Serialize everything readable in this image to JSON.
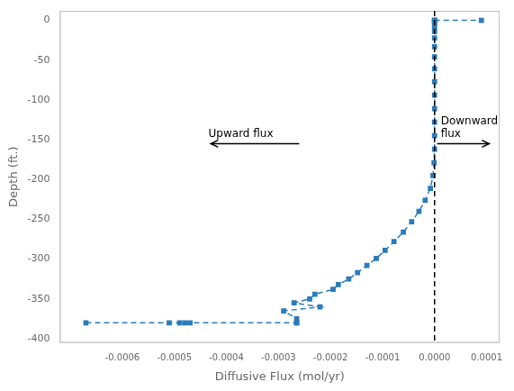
{
  "chart_data": {
    "type": "line",
    "xlabel": "Diffusive Flux (mol/yr)",
    "ylabel": "Depth (ft.)",
    "xlim": [
      -0.00072,
      0.000125
    ],
    "ylim": [
      -405,
      12
    ],
    "xticks": [
      -0.0006,
      -0.0005,
      -0.0004,
      -0.0003,
      -0.0002,
      -0.0001,
      {
        "value": 0,
        "label": "0.0000"
      },
      0.0001
    ],
    "yticks": [
      -400,
      -350,
      -300,
      -250,
      -200,
      -150,
      -100,
      -50,
      0
    ],
    "grid": false,
    "series": [
      {
        "color": "#2b7bba",
        "marker": "square",
        "line_style": "dashed",
        "x": [
          -0.00067,
          -0.00051,
          -0.00049,
          -0.00048,
          -0.00047,
          -0.000265
        ],
        "values": [
          -380,
          -380,
          -380,
          -380,
          -380,
          -380
        ]
      },
      {
        "color": "#2b7bba",
        "marker": "square",
        "line_style": "dashed",
        "x": [
          -0.000265,
          -0.000265,
          -0.00029,
          -0.00022,
          -0.00027,
          -0.00024,
          -0.00023,
          -0.000195,
          -0.000185,
          -0.000165,
          -0.000148,
          -0.00013,
          -0.000112,
          -9.5e-05,
          -7.8e-05,
          -6e-05,
          -4.4e-05,
          -3e-05,
          -1.8e-05,
          -8e-06,
          -3e-06,
          -1e-06,
          -0.0,
          -0.0,
          -0.0,
          -0.0,
          -0.0,
          -0.0,
          -0.0,
          -0.0,
          -0.0,
          -0.0,
          -0.0,
          -0.0,
          -0.0,
          -0.0,
          -0.0,
          0.0
        ],
        "values": [
          -380,
          -375,
          -365,
          -360,
          -355,
          -350,
          -344,
          -338,
          -332,
          -325,
          -317,
          -308,
          -299,
          -289,
          -278,
          -266,
          -253,
          -240,
          -226,
          -211,
          -195,
          -179,
          -162,
          -145,
          -128,
          -111,
          -94,
          -77,
          -61,
          -46,
          -33,
          -22,
          -14,
          -8,
          -4,
          -1,
          0,
          0
        ]
      },
      {
        "color": "#2b7bba",
        "marker": "square",
        "line_style": "dashed",
        "x": [
          0.0,
          9e-05
        ],
        "values": [
          0,
          0
        ]
      }
    ],
    "vlines": [
      {
        "x": 0.0,
        "color": "#000000",
        "line_style": "dashed"
      }
    ],
    "annotations": [
      {
        "text": "Upward flux",
        "x": -0.00031,
        "y": -152,
        "color": "#000000",
        "arrow": {
          "from": [
            -0.00026,
            -155
          ],
          "to": [
            -0.00043,
            -155
          ]
        }
      },
      {
        "text": "Downward\nflux",
        "x": 1.2e-05,
        "y": -152,
        "color": "#000000",
        "arrow": {
          "from": [
            5e-06,
            -155
          ],
          "to": [
            0.000105,
            -155
          ]
        }
      }
    ]
  }
}
